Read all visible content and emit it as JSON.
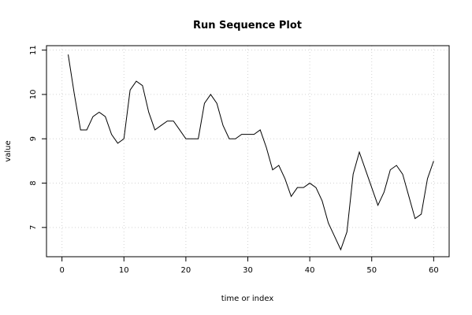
{
  "chart_data": {
    "type": "line",
    "title": "Run Sequence Plot",
    "xlabel": "time or index",
    "ylabel": "value",
    "xlim": [
      -2.5,
      62.5
    ],
    "ylim": [
      6.34,
      11.1
    ],
    "xticks": [
      0,
      10,
      20,
      30,
      40,
      50,
      60
    ],
    "yticks": [
      7,
      8,
      9,
      10,
      11
    ],
    "grid": true,
    "x": [
      1,
      2,
      3,
      4,
      5,
      6,
      7,
      8,
      9,
      10,
      11,
      12,
      13,
      14,
      15,
      16,
      17,
      18,
      19,
      20,
      21,
      22,
      23,
      24,
      25,
      26,
      27,
      28,
      29,
      30,
      31,
      32,
      33,
      34,
      35,
      36,
      37,
      38,
      39,
      40,
      41,
      42,
      43,
      44,
      45,
      46,
      47,
      48,
      49,
      50,
      51,
      52,
      53,
      54,
      55,
      56,
      57,
      58,
      59,
      60
    ],
    "series": [
      {
        "values": [
          10.9,
          10.0,
          9.2,
          9.2,
          9.5,
          9.6,
          9.5,
          9.1,
          8.9,
          9.0,
          10.1,
          10.3,
          10.2,
          9.6,
          9.2,
          9.3,
          9.4,
          9.4,
          9.2,
          9.0,
          9.0,
          9.0,
          9.8,
          10.0,
          9.8,
          9.3,
          9.0,
          9.0,
          9.1,
          9.1,
          9.1,
          9.2,
          8.8,
          8.3,
          8.4,
          8.1,
          7.7,
          7.9,
          7.9,
          8.0,
          7.9,
          7.6,
          7.1,
          6.8,
          6.5,
          6.9,
          8.2,
          8.7,
          8.3,
          7.9,
          7.5,
          7.8,
          8.3,
          8.4,
          8.2,
          7.7,
          7.2,
          7.3,
          8.1,
          8.5
        ]
      }
    ]
  }
}
